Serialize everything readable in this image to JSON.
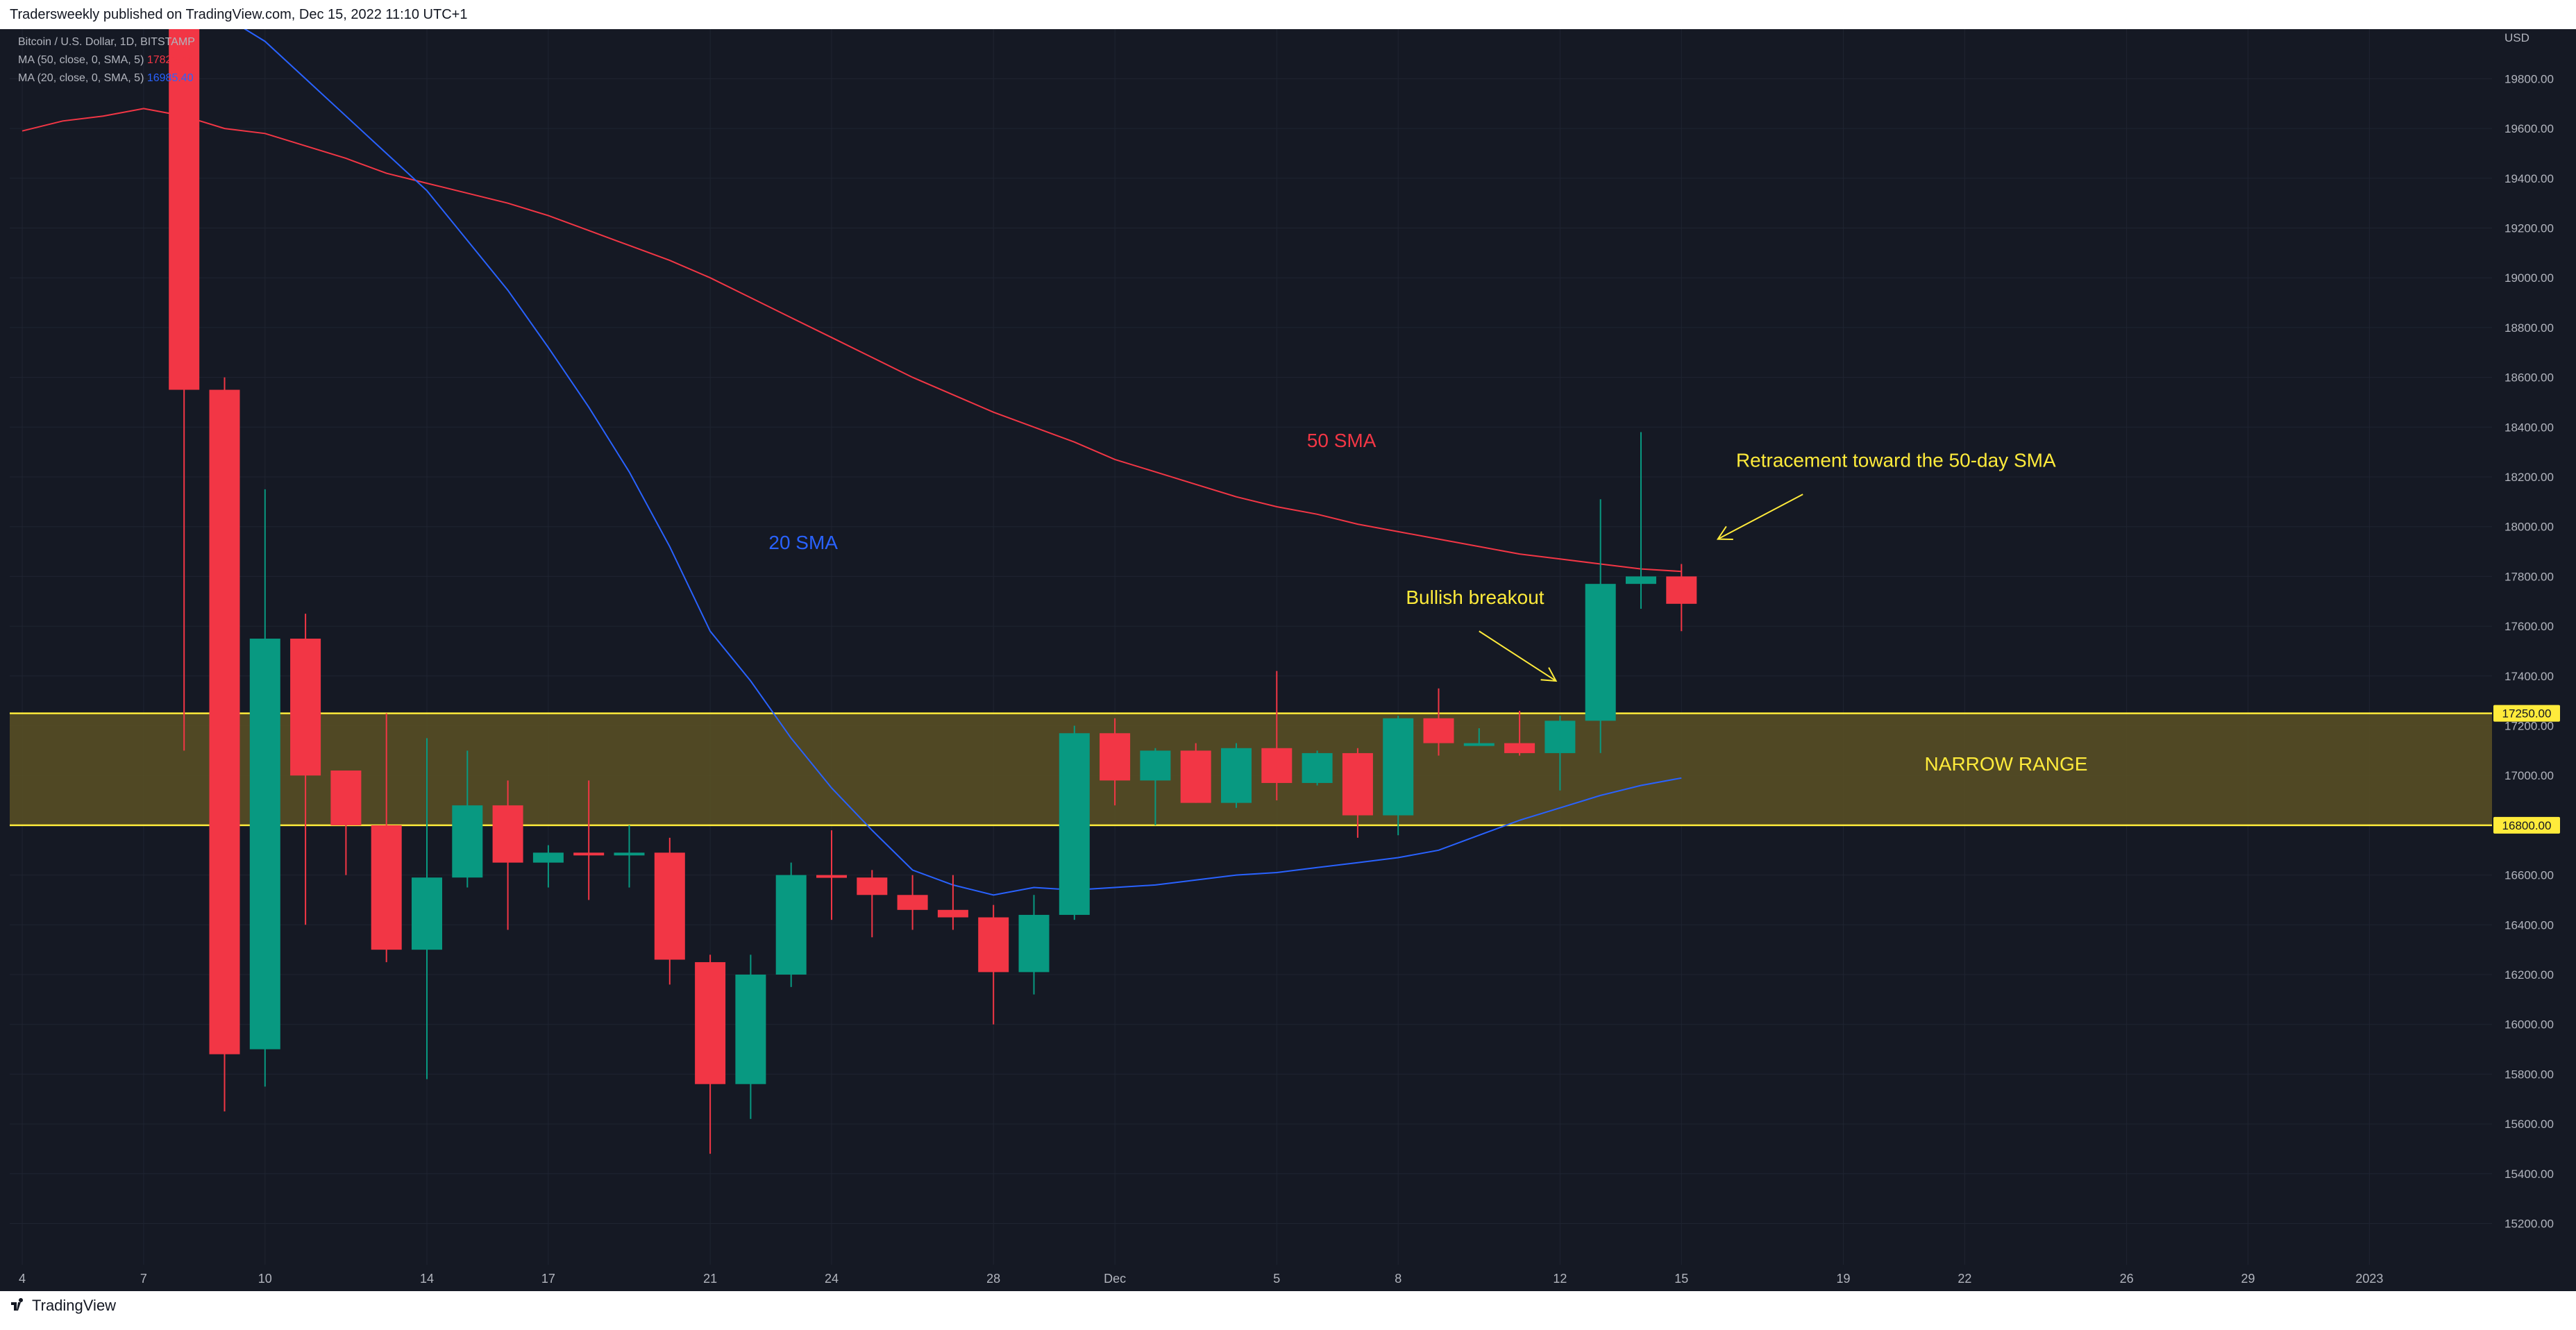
{
  "header": {
    "publisher_line": "Tradersweekly published on TradingView.com, Dec 15, 2022 11:10 UTC+1"
  },
  "legend": {
    "symbol_line": "Bitcoin / U.S. Dollar, 1D, BITSTAMP",
    "ma50": {
      "label": "MA (50, close, 0, SMA, 5)",
      "value": "17822.48",
      "color": "#f23645"
    },
    "ma20": {
      "label": "MA (20, close, 0, SMA, 5)",
      "value": "16985.40",
      "color": "#2962ff"
    }
  },
  "footer": {
    "brand": "TradingView",
    "logo_icon": "tradingview-logo-icon"
  },
  "colors": {
    "up": "#089981",
    "down": "#f23645",
    "zone_fill": "#5a5124",
    "zone_line": "#ffeb3b",
    "annotation": "#ffeb3b",
    "ma20_label": "#2962ff",
    "ma50_label": "#f23645"
  },
  "chart_data": {
    "type": "candlestick",
    "title": "Bitcoin / U.S. Dollar, 1D, BITSTAMP",
    "currency_label": "USD",
    "x_ticks": [
      {
        "label": "4",
        "day": 4
      },
      {
        "label": "7",
        "day": 7
      },
      {
        "label": "10",
        "day": 10
      },
      {
        "label": "14",
        "day": 14
      },
      {
        "label": "17",
        "day": 17
      },
      {
        "label": "21",
        "day": 21
      },
      {
        "label": "24",
        "day": 24
      },
      {
        "label": "28",
        "day": 28
      },
      {
        "label": "Dec",
        "day": 31
      },
      {
        "label": "5",
        "day": 35
      },
      {
        "label": "8",
        "day": 38
      },
      {
        "label": "12",
        "day": 42
      },
      {
        "label": "15",
        "day": 45
      },
      {
        "label": "19",
        "day": 49
      },
      {
        "label": "22",
        "day": 52
      },
      {
        "label": "26",
        "day": 56
      },
      {
        "label": "29",
        "day": 59
      },
      {
        "label": "2023",
        "day": 62
      }
    ],
    "y_ticks": [
      15200,
      15400,
      15600,
      15800,
      16000,
      16200,
      16400,
      16600,
      16800,
      17000,
      17200,
      17400,
      17600,
      17800,
      18000,
      18200,
      18400,
      18600,
      18800,
      19000,
      19200,
      19400,
      19600,
      19800
    ],
    "ylim": [
      15000,
      20000
    ],
    "grid": true,
    "candles": [
      {
        "day": 8,
        "open": 20000,
        "high": 20000,
        "low": 17100,
        "close": 18550
      },
      {
        "day": 9,
        "open": 18550,
        "high": 18600,
        "low": 15650,
        "close": 15880
      },
      {
        "day": 10,
        "open": 15900,
        "high": 18150,
        "low": 15750,
        "close": 17550
      },
      {
        "day": 11,
        "open": 17550,
        "high": 17650,
        "low": 16400,
        "close": 17000
      },
      {
        "day": 12,
        "open": 17020,
        "high": 17020,
        "low": 16600,
        "close": 16800
      },
      {
        "day": 13,
        "open": 16800,
        "high": 17250,
        "low": 16250,
        "close": 16300
      },
      {
        "day": 14,
        "open": 16300,
        "high": 17150,
        "low": 15780,
        "close": 16590
      },
      {
        "day": 15,
        "open": 16590,
        "high": 17100,
        "low": 16550,
        "close": 16880
      },
      {
        "day": 16,
        "open": 16880,
        "high": 16980,
        "low": 16380,
        "close": 16650
      },
      {
        "day": 17,
        "open": 16650,
        "high": 16720,
        "low": 16550,
        "close": 16690
      },
      {
        "day": 18,
        "open": 16690,
        "high": 16980,
        "low": 16500,
        "close": 16680
      },
      {
        "day": 19,
        "open": 16680,
        "high": 16800,
        "low": 16550,
        "close": 16690
      },
      {
        "day": 20,
        "open": 16690,
        "high": 16750,
        "low": 16160,
        "close": 16260
      },
      {
        "day": 21,
        "open": 16250,
        "high": 16280,
        "low": 15480,
        "close": 15760
      },
      {
        "day": 22,
        "open": 15760,
        "high": 16280,
        "low": 15620,
        "close": 16200
      },
      {
        "day": 23,
        "open": 16200,
        "high": 16650,
        "low": 16150,
        "close": 16600
      },
      {
        "day": 24,
        "open": 16600,
        "high": 16780,
        "low": 16420,
        "close": 16590
      },
      {
        "day": 25,
        "open": 16590,
        "high": 16620,
        "low": 16350,
        "close": 16520
      },
      {
        "day": 26,
        "open": 16520,
        "high": 16600,
        "low": 16380,
        "close": 16460
      },
      {
        "day": 27,
        "open": 16460,
        "high": 16600,
        "low": 16380,
        "close": 16430
      },
      {
        "day": 28,
        "open": 16430,
        "high": 16480,
        "low": 16000,
        "close": 16210
      },
      {
        "day": 29,
        "open": 16210,
        "high": 16520,
        "low": 16120,
        "close": 16440
      },
      {
        "day": 30,
        "open": 16440,
        "high": 17200,
        "low": 16420,
        "close": 17170
      },
      {
        "day": 31,
        "open": 17170,
        "high": 17230,
        "low": 16880,
        "close": 16980
      },
      {
        "day": 32,
        "open": 16980,
        "high": 17110,
        "low": 16800,
        "close": 17100
      },
      {
        "day": 33,
        "open": 17100,
        "high": 17130,
        "low": 16890,
        "close": 16890
      },
      {
        "day": 34,
        "open": 16890,
        "high": 17130,
        "low": 16870,
        "close": 17110
      },
      {
        "day": 35,
        "open": 17110,
        "high": 17420,
        "low": 16900,
        "close": 16970
      },
      {
        "day": 36,
        "open": 16970,
        "high": 17100,
        "low": 16960,
        "close": 17090
      },
      {
        "day": 37,
        "open": 17090,
        "high": 17110,
        "low": 16750,
        "close": 16840
      },
      {
        "day": 38,
        "open": 16840,
        "high": 17240,
        "low": 16760,
        "close": 17230
      },
      {
        "day": 39,
        "open": 17230,
        "high": 17350,
        "low": 17080,
        "close": 17130
      },
      {
        "day": 40,
        "open": 17130,
        "high": 17190,
        "low": 17120,
        "close": 17130
      },
      {
        "day": 41,
        "open": 17130,
        "high": 17260,
        "low": 17080,
        "close": 17090
      },
      {
        "day": 42,
        "open": 17090,
        "high": 17240,
        "low": 16940,
        "close": 17220
      },
      {
        "day": 43,
        "open": 17220,
        "high": 18110,
        "low": 17090,
        "close": 17770
      },
      {
        "day": 44,
        "open": 17770,
        "high": 18380,
        "low": 17670,
        "close": 17800
      },
      {
        "day": 45,
        "open": 17800,
        "high": 17850,
        "low": 17580,
        "close": 17690
      }
    ],
    "series": [
      {
        "name": "MA (50, close, 0, SMA, 5)",
        "color": "#f23645",
        "points": [
          [
            4,
            19590
          ],
          [
            5,
            19630
          ],
          [
            6,
            19650
          ],
          [
            7,
            19680
          ],
          [
            8,
            19650
          ],
          [
            9,
            19600
          ],
          [
            10,
            19580
          ],
          [
            11,
            19530
          ],
          [
            12,
            19480
          ],
          [
            13,
            19420
          ],
          [
            14,
            19380
          ],
          [
            15,
            19340
          ],
          [
            16,
            19300
          ],
          [
            17,
            19250
          ],
          [
            18,
            19190
          ],
          [
            19,
            19130
          ],
          [
            20,
            19070
          ],
          [
            21,
            19000
          ],
          [
            22,
            18920
          ],
          [
            23,
            18840
          ],
          [
            24,
            18760
          ],
          [
            25,
            18680
          ],
          [
            26,
            18600
          ],
          [
            27,
            18530
          ],
          [
            28,
            18460
          ],
          [
            29,
            18400
          ],
          [
            30,
            18340
          ],
          [
            31,
            18270
          ],
          [
            32,
            18220
          ],
          [
            33,
            18170
          ],
          [
            34,
            18120
          ],
          [
            35,
            18080
          ],
          [
            36,
            18050
          ],
          [
            37,
            18010
          ],
          [
            38,
            17980
          ],
          [
            39,
            17950
          ],
          [
            40,
            17920
          ],
          [
            41,
            17890
          ],
          [
            42,
            17870
          ],
          [
            43,
            17850
          ],
          [
            44,
            17830
          ],
          [
            45,
            17820
          ]
        ]
      },
      {
        "name": "MA (20, close, 0, SMA, 5)",
        "color": "#2962ff",
        "points": [
          [
            9,
            20050
          ],
          [
            10,
            19950
          ],
          [
            11,
            19800
          ],
          [
            12,
            19650
          ],
          [
            13,
            19500
          ],
          [
            14,
            19350
          ],
          [
            15,
            19150
          ],
          [
            16,
            18950
          ],
          [
            17,
            18720
          ],
          [
            18,
            18480
          ],
          [
            19,
            18220
          ],
          [
            20,
            17920
          ],
          [
            21,
            17580
          ],
          [
            22,
            17380
          ],
          [
            23,
            17150
          ],
          [
            24,
            16950
          ],
          [
            25,
            16780
          ],
          [
            26,
            16620
          ],
          [
            27,
            16560
          ],
          [
            28,
            16520
          ],
          [
            29,
            16550
          ],
          [
            30,
            16540
          ],
          [
            31,
            16550
          ],
          [
            32,
            16560
          ],
          [
            33,
            16580
          ],
          [
            34,
            16600
          ],
          [
            35,
            16610
          ],
          [
            36,
            16630
          ],
          [
            37,
            16650
          ],
          [
            38,
            16670
          ],
          [
            39,
            16700
          ],
          [
            40,
            16760
          ],
          [
            41,
            16820
          ],
          [
            42,
            16870
          ],
          [
            43,
            16920
          ],
          [
            44,
            16960
          ],
          [
            45,
            16990
          ]
        ]
      }
    ],
    "zone": {
      "low": 16800,
      "high": 17250,
      "label_low": "16800.00",
      "label_high": "17250.00",
      "label": "NARROW RANGE"
    },
    "annotations": [
      {
        "text": "50 SMA",
        "day": 36.6,
        "price": 18320,
        "color_key": "ma50_label"
      },
      {
        "text": "20 SMA",
        "day": 23.3,
        "price": 17910,
        "color_key": "ma20_label"
      },
      {
        "text": "Retracement toward the 50-day SMA",
        "day": 50.3,
        "price": 18240,
        "color_key": "annotation",
        "arrow_from": [
          48,
          18130
        ],
        "arrow_to": [
          45.9,
          17950
        ]
      },
      {
        "text": "Bullish breakout",
        "day": 39.9,
        "price": 17690,
        "color_key": "annotation",
        "arrow_from": [
          40,
          17580
        ],
        "arrow_to": [
          41.9,
          17380
        ]
      }
    ]
  }
}
